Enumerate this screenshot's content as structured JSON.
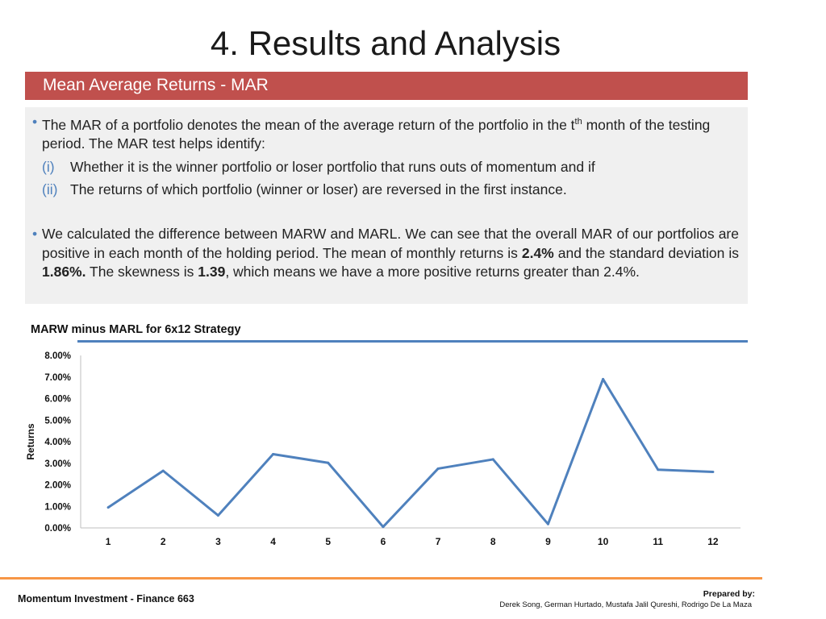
{
  "slide": {
    "title": "4. Results and Analysis",
    "banner": "Mean Average Returns - MAR"
  },
  "body": {
    "bullet": "•",
    "p1_a": "The MAR of a portfolio denotes the mean of the average return of the portfolio in the t",
    "p1_sup": "th",
    "p1_b": " month of the testing period. The MAR test helps identify:",
    "items": [
      {
        "num": "(i)",
        "text": "Whether it is the winner portfolio or loser portfolio that runs outs of momentum and if"
      },
      {
        "num": "(ii)",
        "text": "The returns of which portfolio (winner or loser) are reversed in the first instance."
      }
    ],
    "p2_a": "We calculated the difference between MARW and MARL. We can see that the overall MAR of our portfolios are positive in each month of the holding period. The mean of monthly returns is ",
    "p2_mean": "2.4%",
    "p2_b": " and the standard deviation is ",
    "p2_sd": "1.86%.",
    "p2_c": " The skewness is ",
    "p2_skew": "1.39",
    "p2_d": ", which means we have a more positive returns greater than 2.4%."
  },
  "chart_data": {
    "type": "line",
    "title": "MARW minus MARL for 6x12 Strategy",
    "ylabel": "Returns",
    "xlabel": "",
    "x": [
      1,
      2,
      3,
      4,
      5,
      6,
      7,
      8,
      9,
      10,
      11,
      12
    ],
    "series": [
      {
        "values": [
          0.95,
          2.65,
          0.58,
          3.42,
          3.02,
          0.05,
          2.75,
          3.18,
          0.18,
          6.9,
          2.7,
          2.6
        ]
      }
    ],
    "ylim": [
      0,
      8
    ],
    "yticks": [
      "0.00%",
      "1.00%",
      "2.00%",
      "3.00%",
      "4.00%",
      "5.00%",
      "6.00%",
      "7.00%",
      "8.00%"
    ],
    "line_color": "#4f81bd",
    "grid": false
  },
  "footer": {
    "left": "Momentum Investment  - Finance 663",
    "prepared": "Prepared by:",
    "names": "Derek Song, German Hurtado, Mustafa Jalil Qureshi, Rodrigo De La Maza"
  }
}
